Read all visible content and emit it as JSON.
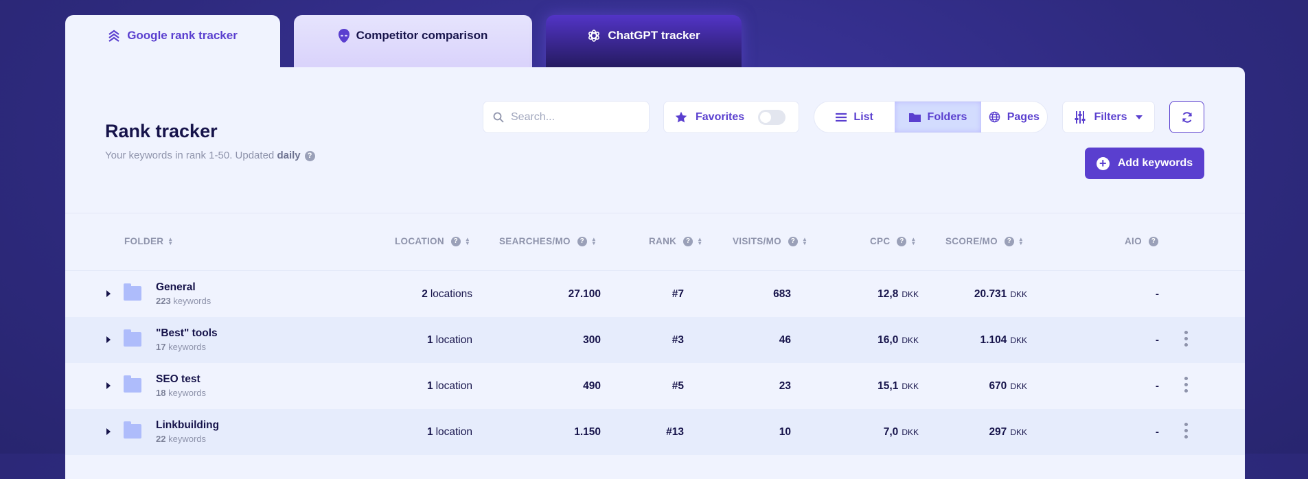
{
  "colors": {
    "accent": "#5a3fcf",
    "background": "#2e2a7e",
    "panel": "#f0f3fe",
    "row_alt": "#e6ecfc",
    "text": "#16134a"
  },
  "tabs": [
    {
      "label": "Google rank tracker",
      "icon": "stacked-chevrons-icon",
      "active": true
    },
    {
      "label": "Competitor comparison",
      "icon": "alien-icon"
    },
    {
      "label": "ChatGPT tracker",
      "icon": "openai-icon"
    }
  ],
  "header": {
    "title": "Rank tracker",
    "subtitle": "Your keywords in rank 1-50. Updated",
    "subtitle_bold": "daily"
  },
  "toolbar": {
    "search_placeholder": "Search...",
    "favorites_label": "Favorites",
    "favorites_on": false,
    "view": {
      "list": "List",
      "folders": "Folders",
      "pages": "Pages",
      "selected": "Folders"
    },
    "filters_label": "Filters",
    "add_keywords_label": "Add keywords"
  },
  "columns": {
    "folder": "FOLDER",
    "location": "LOCATION",
    "searches": "SEARCHES/MO",
    "rank": "RANK",
    "visits": "VISITS/MO",
    "cpc": "CPC",
    "score": "SCORE/MO",
    "aio": "AIO"
  },
  "rows": [
    {
      "name": "General",
      "kw_count": "223",
      "kw_label": "keywords",
      "loc_count": "2",
      "loc_label": "locations",
      "searches": "27.100",
      "rank": "#7",
      "visits": "683",
      "cpc": "12,8",
      "cpc_unit": "DKK",
      "score": "20.731",
      "score_unit": "DKK",
      "aio": "-",
      "menu": false
    },
    {
      "name": "\"Best\" tools",
      "kw_count": "17",
      "kw_label": "keywords",
      "loc_count": "1",
      "loc_label": "location",
      "searches": "300",
      "rank": "#3",
      "visits": "46",
      "cpc": "16,0",
      "cpc_unit": "DKK",
      "score": "1.104",
      "score_unit": "DKK",
      "aio": "-",
      "menu": true
    },
    {
      "name": "SEO test",
      "kw_count": "18",
      "kw_label": "keywords",
      "loc_count": "1",
      "loc_label": "location",
      "searches": "490",
      "rank": "#5",
      "visits": "23",
      "cpc": "15,1",
      "cpc_unit": "DKK",
      "score": "670",
      "score_unit": "DKK",
      "aio": "-",
      "menu": true
    },
    {
      "name": "Linkbuilding",
      "kw_count": "22",
      "kw_label": "keywords",
      "loc_count": "1",
      "loc_label": "location",
      "searches": "1.150",
      "rank": "#13",
      "visits": "10",
      "cpc": "7,0",
      "cpc_unit": "DKK",
      "score": "297",
      "score_unit": "DKK",
      "aio": "-",
      "menu": true
    }
  ]
}
